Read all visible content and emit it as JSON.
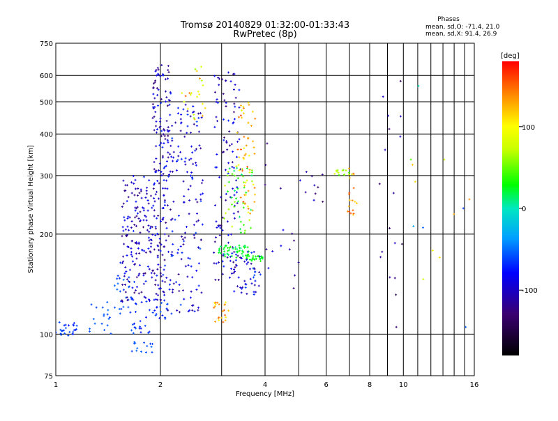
{
  "chart_data": {
    "type": "scatter",
    "title": "Tromsø 20140829 01:32:00-01:33:43",
    "subtitle": "RwPretec (8p)",
    "xlabel": "Frequency [MHz]",
    "ylabel": "Stationary phase Virtual Height [km]",
    "x_scale": "log",
    "y_scale": "log",
    "xlim": [
      1,
      16
    ],
    "ylim": [
      75,
      750
    ],
    "x_ticks": [
      1,
      2,
      4,
      6,
      8,
      10,
      16
    ],
    "x_tick_labels": [
      "1",
      "2",
      "4",
      "6",
      "8",
      "10",
      "16"
    ],
    "y_ticks": [
      75,
      100,
      200,
      300,
      400,
      500,
      600,
      750
    ],
    "y_tick_labels": [
      "75",
      "100",
      "200",
      "300",
      "400",
      "500",
      "600",
      "750"
    ],
    "grid": true,
    "colorbar": {
      "label": "[deg]",
      "range": [
        -180,
        180
      ],
      "ticks": [
        100,
        0,
        -100
      ],
      "tick_labels": [
        "100",
        "0",
        "-100"
      ]
    },
    "legend_text": {
      "heading": "Phases",
      "line1": "mean, sd,O: -71.4, 21.0",
      "line2": "mean, sd,X:  91.4, 26.9"
    },
    "clusters": [
      {
        "f": [
          1.0,
          1.15
        ],
        "h": [
          98,
          110
        ],
        "phase": [
          -75,
          -55
        ],
        "count": 25
      },
      {
        "f": [
          1.25,
          1.45
        ],
        "h": [
          95,
          125
        ],
        "phase": [
          -65,
          -50
        ],
        "count": 18
      },
      {
        "f": [
          1.45,
          1.7
        ],
        "h": [
          115,
          165
        ],
        "phase": [
          -75,
          -50
        ],
        "count": 28
      },
      {
        "f": [
          1.6,
          1.9
        ],
        "h": [
          88,
          95
        ],
        "phase": [
          -70,
          -50
        ],
        "count": 14
      },
      {
        "f": [
          1.65,
          2.1
        ],
        "h": [
          100,
          130
        ],
        "phase": [
          -80,
          -55
        ],
        "count": 40
      },
      {
        "f": [
          1.55,
          2.1
        ],
        "h": [
          125,
          300
        ],
        "phase": [
          -130,
          -70
        ],
        "count": 240
      },
      {
        "f": [
          1.9,
          2.15
        ],
        "h": [
          300,
          650
        ],
        "phase": [
          -130,
          -70
        ],
        "count": 95
      },
      {
        "f": [
          2.1,
          2.65
        ],
        "h": [
          115,
          500
        ],
        "phase": [
          -125,
          -60
        ],
        "count": 160
      },
      {
        "f": [
          2.3,
          2.7
        ],
        "h": [
          440,
          640
        ],
        "phase": [
          60,
          150
        ],
        "count": 22
      },
      {
        "f": [
          2.85,
          3.4
        ],
        "h": [
          145,
          620
        ],
        "phase": [
          -130,
          -70
        ],
        "count": 120
      },
      {
        "f": [
          2.85,
          3.15
        ],
        "h": [
          108,
          125
        ],
        "phase": [
          100,
          155
        ],
        "count": 22
      },
      {
        "f": [
          2.9,
          3.6
        ],
        "h": [
          170,
          185
        ],
        "phase": [
          5,
          40
        ],
        "count": 55
      },
      {
        "f": [
          3.5,
          3.95
        ],
        "h": [
          165,
          172
        ],
        "phase": [
          20,
          40
        ],
        "count": 25
      },
      {
        "f": [
          3.05,
          3.7
        ],
        "h": [
          200,
          320
        ],
        "phase": [
          10,
          80
        ],
        "count": 50
      },
      {
        "f": [
          3.3,
          3.75
        ],
        "h": [
          230,
          500
        ],
        "phase": [
          90,
          160
        ],
        "count": 55
      },
      {
        "f": [
          3.2,
          3.9
        ],
        "h": [
          130,
          180
        ],
        "phase": [
          -120,
          -60
        ],
        "count": 45
      },
      {
        "f": [
          4.0,
          5.0
        ],
        "h": [
          130,
          420
        ],
        "phase": [
          -130,
          -80
        ],
        "count": 15
      },
      {
        "f": [
          6.2,
          7.2
        ],
        "h": [
          300,
          312
        ],
        "phase": [
          40,
          80
        ],
        "count": 14
      },
      {
        "f": [
          6.9,
          7.4
        ],
        "h": [
          220,
          320
        ],
        "phase": [
          110,
          160
        ],
        "count": 18
      },
      {
        "f": [
          5.0,
          6.5
        ],
        "h": [
          250,
          310
        ],
        "phase": [
          -140,
          -90
        ],
        "count": 10
      },
      {
        "f": [
          8.5,
          10.0
        ],
        "h": [
          90,
          580
        ],
        "phase": [
          -150,
          -90
        ],
        "count": 18
      },
      {
        "f": [
          10.5,
          16.0
        ],
        "h": [
          95,
          620
        ],
        "phase": [
          -150,
          140
        ],
        "count": 14
      }
    ]
  }
}
